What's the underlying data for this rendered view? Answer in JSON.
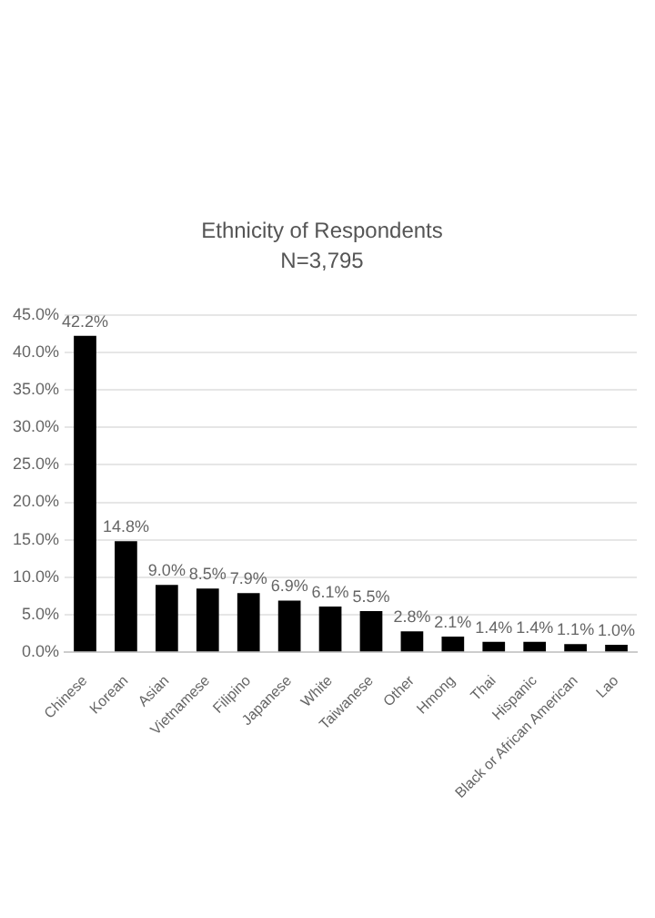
{
  "chart_data": {
    "type": "bar",
    "title": "Ethnicity of Respondents",
    "subtitle": "N=3,795",
    "categories": [
      "Chinese",
      "Korean",
      "Asian",
      "Vietnamese",
      "Filipino",
      "Japanese",
      "White",
      "Taiwanese",
      "Other",
      "Hmong",
      "Thai",
      "Hispanic",
      "Black or African American",
      "Lao"
    ],
    "values": [
      42.2,
      14.8,
      9.0,
      8.5,
      7.9,
      6.9,
      6.1,
      5.5,
      2.8,
      2.1,
      1.4,
      1.4,
      1.1,
      1.0
    ],
    "value_labels": [
      "42.2%",
      "14.8%",
      "9.0%",
      "8.5%",
      "7.9%",
      "6.9%",
      "6.1%",
      "5.5%",
      "2.8%",
      "2.1%",
      "1.4%",
      "1.4%",
      "1.1%",
      "1.0%"
    ],
    "color": "#000000",
    "ylim": [
      0,
      45
    ],
    "yticks": [
      {
        "value": 0,
        "label": "0.0%"
      },
      {
        "value": 5,
        "label": "5.0%"
      },
      {
        "value": 10,
        "label": "10.0%"
      },
      {
        "value": 15,
        "label": "15.0%"
      },
      {
        "value": 20,
        "label": "20.0%"
      },
      {
        "value": 25,
        "label": "25.0%"
      },
      {
        "value": 30,
        "label": "30.0%"
      },
      {
        "value": 35,
        "label": "35.0%"
      },
      {
        "value": 40,
        "label": "40.0%"
      },
      {
        "value": 45,
        "label": "45.0%"
      }
    ],
    "grid": "y",
    "legend": false
  }
}
